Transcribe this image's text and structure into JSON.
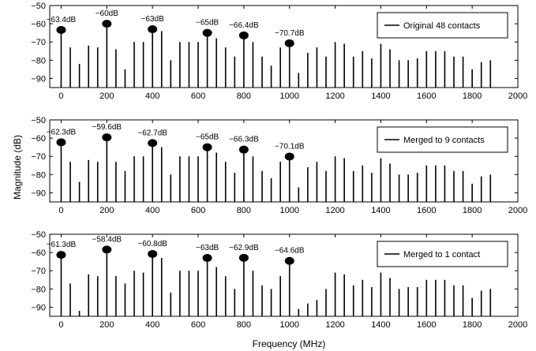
{
  "figure": {
    "ylabel": "Magnitude (dB)",
    "xlabel": "Frequency (MHz)"
  },
  "chart_data": [
    {
      "type": "stem",
      "legend": "Original 48 contacts",
      "legend_position": "top-right",
      "xlim": [
        -50,
        2000
      ],
      "ylim": [
        -95,
        -50
      ],
      "xticks": [
        "0",
        "200",
        "400",
        "600",
        "800",
        "1000",
        "1200",
        "1400",
        "1600",
        "1800",
        "2000"
      ],
      "yticks": [
        "−50",
        "−60",
        "−70",
        "−80",
        "−90"
      ],
      "stems": [
        {
          "x": 0,
          "y": -63.4
        },
        {
          "x": 40,
          "y": -73
        },
        {
          "x": 80,
          "y": -82
        },
        {
          "x": 120,
          "y": -72
        },
        {
          "x": 160,
          "y": -73
        },
        {
          "x": 200,
          "y": -60
        },
        {
          "x": 240,
          "y": -74
        },
        {
          "x": 280,
          "y": -85
        },
        {
          "x": 320,
          "y": -70
        },
        {
          "x": 360,
          "y": -70
        },
        {
          "x": 400,
          "y": -63
        },
        {
          "x": 440,
          "y": -64
        },
        {
          "x": 480,
          "y": -80
        },
        {
          "x": 520,
          "y": -70
        },
        {
          "x": 560,
          "y": -70
        },
        {
          "x": 600,
          "y": -70
        },
        {
          "x": 640,
          "y": -65
        },
        {
          "x": 680,
          "y": -68
        },
        {
          "x": 720,
          "y": -73
        },
        {
          "x": 760,
          "y": -78
        },
        {
          "x": 800,
          "y": -66.4
        },
        {
          "x": 840,
          "y": -70
        },
        {
          "x": 880,
          "y": -78
        },
        {
          "x": 920,
          "y": -83
        },
        {
          "x": 960,
          "y": -73
        },
        {
          "x": 1000,
          "y": -70.7
        },
        {
          "x": 1040,
          "y": -87
        },
        {
          "x": 1080,
          "y": -76
        },
        {
          "x": 1120,
          "y": -73
        },
        {
          "x": 1160,
          "y": -78
        },
        {
          "x": 1200,
          "y": -70
        },
        {
          "x": 1240,
          "y": -71
        },
        {
          "x": 1280,
          "y": -78
        },
        {
          "x": 1320,
          "y": -75
        },
        {
          "x": 1360,
          "y": -79
        },
        {
          "x": 1400,
          "y": -71
        },
        {
          "x": 1440,
          "y": -74
        },
        {
          "x": 1480,
          "y": -80
        },
        {
          "x": 1520,
          "y": -80
        },
        {
          "x": 1560,
          "y": -79
        },
        {
          "x": 1600,
          "y": -75
        },
        {
          "x": 1640,
          "y": -75
        },
        {
          "x": 1680,
          "y": -75
        },
        {
          "x": 1720,
          "y": -78
        },
        {
          "x": 1760,
          "y": -78
        },
        {
          "x": 1800,
          "y": -85
        },
        {
          "x": 1840,
          "y": -81
        },
        {
          "x": 1880,
          "y": -80
        }
      ],
      "annotations": [
        {
          "x": 0,
          "y": -63.4,
          "text": "−63.4dB"
        },
        {
          "x": 200,
          "y": -60,
          "text": "−60dB"
        },
        {
          "x": 400,
          "y": -63,
          "text": "−63dB"
        },
        {
          "x": 640,
          "y": -65,
          "text": "−65dB"
        },
        {
          "x": 800,
          "y": -66.4,
          "text": "−66.4dB"
        },
        {
          "x": 1000,
          "y": -70.7,
          "text": "−70.7dB"
        }
      ]
    },
    {
      "type": "stem",
      "legend": "Merged to 9 contacts",
      "legend_position": "top-right",
      "xlim": [
        -50,
        2000
      ],
      "ylim": [
        -95,
        -50
      ],
      "xticks": [
        "0",
        "200",
        "400",
        "600",
        "800",
        "1000",
        "1200",
        "1400",
        "1600",
        "1800",
        "2000"
      ],
      "yticks": [
        "−50",
        "−60",
        "−70",
        "−80",
        "−90"
      ],
      "stems": [
        {
          "x": 0,
          "y": -62.3
        },
        {
          "x": 40,
          "y": -73
        },
        {
          "x": 80,
          "y": -84
        },
        {
          "x": 120,
          "y": -72
        },
        {
          "x": 160,
          "y": -73
        },
        {
          "x": 200,
          "y": -59.6
        },
        {
          "x": 240,
          "y": -73
        },
        {
          "x": 280,
          "y": -78
        },
        {
          "x": 320,
          "y": -70
        },
        {
          "x": 360,
          "y": -70
        },
        {
          "x": 400,
          "y": -62.7
        },
        {
          "x": 440,
          "y": -65
        },
        {
          "x": 480,
          "y": -80
        },
        {
          "x": 520,
          "y": -70
        },
        {
          "x": 560,
          "y": -70
        },
        {
          "x": 600,
          "y": -70
        },
        {
          "x": 640,
          "y": -65
        },
        {
          "x": 680,
          "y": -68
        },
        {
          "x": 720,
          "y": -73
        },
        {
          "x": 760,
          "y": -79
        },
        {
          "x": 800,
          "y": -66.3
        },
        {
          "x": 840,
          "y": -70
        },
        {
          "x": 880,
          "y": -78
        },
        {
          "x": 920,
          "y": -82
        },
        {
          "x": 960,
          "y": -73
        },
        {
          "x": 1000,
          "y": -70.1
        },
        {
          "x": 1040,
          "y": -87
        },
        {
          "x": 1080,
          "y": -76
        },
        {
          "x": 1120,
          "y": -73
        },
        {
          "x": 1160,
          "y": -78
        },
        {
          "x": 1200,
          "y": -70
        },
        {
          "x": 1240,
          "y": -71
        },
        {
          "x": 1280,
          "y": -78
        },
        {
          "x": 1320,
          "y": -75
        },
        {
          "x": 1360,
          "y": -79
        },
        {
          "x": 1400,
          "y": -71
        },
        {
          "x": 1440,
          "y": -74
        },
        {
          "x": 1480,
          "y": -80
        },
        {
          "x": 1520,
          "y": -80
        },
        {
          "x": 1560,
          "y": -79
        },
        {
          "x": 1600,
          "y": -75
        },
        {
          "x": 1640,
          "y": -75
        },
        {
          "x": 1680,
          "y": -75
        },
        {
          "x": 1720,
          "y": -78
        },
        {
          "x": 1760,
          "y": -78
        },
        {
          "x": 1800,
          "y": -85
        },
        {
          "x": 1840,
          "y": -81
        },
        {
          "x": 1880,
          "y": -80
        }
      ],
      "annotations": [
        {
          "x": 0,
          "y": -62.3,
          "text": "−62.3dB"
        },
        {
          "x": 200,
          "y": -59.6,
          "text": "−59.6dB"
        },
        {
          "x": 400,
          "y": -62.7,
          "text": "−62.7dB"
        },
        {
          "x": 640,
          "y": -65,
          "text": "−65dB"
        },
        {
          "x": 800,
          "y": -66.3,
          "text": "−66.3dB"
        },
        {
          "x": 1000,
          "y": -70.1,
          "text": "−70.1dB"
        }
      ]
    },
    {
      "type": "stem",
      "legend": "Merged to 1 contact",
      "legend_position": "top-right",
      "xlim": [
        -50,
        2000
      ],
      "ylim": [
        -95,
        -50
      ],
      "xticks": [
        "0",
        "200",
        "400",
        "600",
        "800",
        "1000",
        "1200",
        "1400",
        "1600",
        "1800",
        "2000"
      ],
      "yticks": [
        "−50",
        "−60",
        "−70",
        "−80",
        "−90"
      ],
      "stems": [
        {
          "x": 0,
          "y": -61.3
        },
        {
          "x": 40,
          "y": -77
        },
        {
          "x": 80,
          "y": -92
        },
        {
          "x": 120,
          "y": -72
        },
        {
          "x": 160,
          "y": -73
        },
        {
          "x": 200,
          "y": -58.4
        },
        {
          "x": 240,
          "y": -73
        },
        {
          "x": 280,
          "y": -77
        },
        {
          "x": 320,
          "y": -70
        },
        {
          "x": 360,
          "y": -71
        },
        {
          "x": 400,
          "y": -60.8
        },
        {
          "x": 440,
          "y": -63
        },
        {
          "x": 480,
          "y": -82
        },
        {
          "x": 520,
          "y": -70
        },
        {
          "x": 560,
          "y": -70
        },
        {
          "x": 600,
          "y": -70
        },
        {
          "x": 640,
          "y": -63
        },
        {
          "x": 680,
          "y": -68
        },
        {
          "x": 720,
          "y": -73
        },
        {
          "x": 760,
          "y": -80
        },
        {
          "x": 800,
          "y": -62.9
        },
        {
          "x": 840,
          "y": -70
        },
        {
          "x": 880,
          "y": -78
        },
        {
          "x": 920,
          "y": -80
        },
        {
          "x": 960,
          "y": -73
        },
        {
          "x": 1000,
          "y": -64.6
        },
        {
          "x": 1040,
          "y": -91
        },
        {
          "x": 1080,
          "y": -88
        },
        {
          "x": 1120,
          "y": -86
        },
        {
          "x": 1160,
          "y": -80
        },
        {
          "x": 1200,
          "y": -71
        },
        {
          "x": 1240,
          "y": -72
        },
        {
          "x": 1280,
          "y": -78
        },
        {
          "x": 1320,
          "y": -75
        },
        {
          "x": 1360,
          "y": -79
        },
        {
          "x": 1400,
          "y": -71
        },
        {
          "x": 1440,
          "y": -74
        },
        {
          "x": 1480,
          "y": -80
        },
        {
          "x": 1520,
          "y": -79
        },
        {
          "x": 1560,
          "y": -79
        },
        {
          "x": 1600,
          "y": -75
        },
        {
          "x": 1640,
          "y": -75
        },
        {
          "x": 1680,
          "y": -75
        },
        {
          "x": 1720,
          "y": -78
        },
        {
          "x": 1760,
          "y": -78
        },
        {
          "x": 1800,
          "y": -85
        },
        {
          "x": 1840,
          "y": -81
        },
        {
          "x": 1880,
          "y": -80
        }
      ],
      "annotations": [
        {
          "x": 0,
          "y": -61.3,
          "text": "−61.3dB"
        },
        {
          "x": 200,
          "y": -58.4,
          "text": "−58.4dB"
        },
        {
          "x": 400,
          "y": -60.8,
          "text": "−60.8dB"
        },
        {
          "x": 640,
          "y": -63,
          "text": "−63dB"
        },
        {
          "x": 800,
          "y": -62.9,
          "text": "−62.9dB"
        },
        {
          "x": 1000,
          "y": -64.6,
          "text": "−64.6dB"
        }
      ]
    }
  ]
}
